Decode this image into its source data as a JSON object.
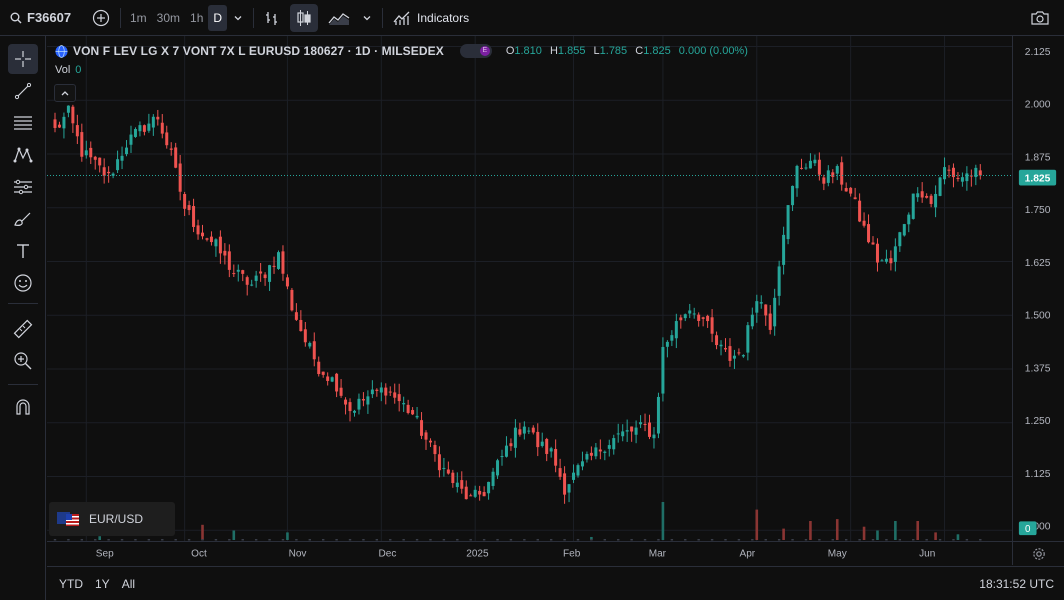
{
  "toolbar": {
    "symbol": "F36607",
    "intervals": [
      "1m",
      "30m",
      "1h",
      "D"
    ],
    "active_interval": "D",
    "indicators_label": "Indicators"
  },
  "legend": {
    "title": "VON F LEV LG X 7 VONT 7X L EURUSD 180627 · 1D · MILSEDEX",
    "badge": "E",
    "open_label": "O",
    "open": "1.810",
    "high_label": "H",
    "high": "1.855",
    "low_label": "L",
    "low": "1.785",
    "close_label": "C",
    "close": "1.825",
    "change": "0.000 (0.00%)",
    "vol_label": "Vol",
    "vol": "0"
  },
  "compare": {
    "label": "EUR/USD"
  },
  "bottom": {
    "ranges": [
      "YTD",
      "1Y",
      "All"
    ],
    "clock": "18:31:52 UTC"
  },
  "colors": {
    "up": "#26a69a",
    "down": "#ef5350",
    "background": "#0f0f0f",
    "grid": "#1c1f26",
    "last_price": "#26a69a"
  },
  "icons": {
    "left_tools": [
      "crosshair-icon",
      "trend-line-icon",
      "fib-icon",
      "pattern-icon",
      "projection-icon",
      "brush-icon",
      "text-icon",
      "emoji-icon",
      "ruler-icon",
      "zoom-in-icon",
      "magnet-icon"
    ]
  },
  "chart_data": {
    "type": "candlestick",
    "price_ticks": [
      "2.125",
      "2.000",
      "1.875",
      "1.750",
      "1.625",
      "1.500",
      "1.375",
      "1.250",
      "1.125",
      "1.000"
    ],
    "ylim": [
      0.975,
      2.14
    ],
    "last_price": "1.825",
    "volume_last": "0",
    "time_ticks": [
      {
        "label": "Sep",
        "i": 7
      },
      {
        "label": "Oct",
        "i": 29
      },
      {
        "label": "Nov",
        "i": 52
      },
      {
        "label": "Dec",
        "i": 73
      },
      {
        "label": "2025",
        "i": 94
      },
      {
        "label": "Feb",
        "i": 116
      },
      {
        "label": "Mar",
        "i": 136
      },
      {
        "label": "Apr",
        "i": 157
      },
      {
        "label": "May",
        "i": 178
      },
      {
        "label": "Jun",
        "i": 199
      }
    ],
    "anchors": [
      [
        0,
        1.93
      ],
      [
        3,
        1.97
      ],
      [
        6,
        1.88
      ],
      [
        9,
        1.85
      ],
      [
        12,
        1.82
      ],
      [
        16,
        1.9
      ],
      [
        20,
        1.94
      ],
      [
        23,
        1.96
      ],
      [
        26,
        1.87
      ],
      [
        29,
        1.75
      ],
      [
        32,
        1.7
      ],
      [
        36,
        1.66
      ],
      [
        40,
        1.6
      ],
      [
        44,
        1.57
      ],
      [
        47,
        1.6
      ],
      [
        50,
        1.64
      ],
      [
        53,
        1.52
      ],
      [
        56,
        1.44
      ],
      [
        59,
        1.38
      ],
      [
        63,
        1.34
      ],
      [
        66,
        1.28
      ],
      [
        70,
        1.31
      ],
      [
        74,
        1.33
      ],
      [
        77,
        1.3
      ],
      [
        80,
        1.27
      ],
      [
        84,
        1.19
      ],
      [
        87,
        1.14
      ],
      [
        90,
        1.1
      ],
      [
        93,
        1.07
      ],
      [
        96,
        1.09
      ],
      [
        99,
        1.15
      ],
      [
        102,
        1.21
      ],
      [
        105,
        1.25
      ],
      [
        108,
        1.2
      ],
      [
        111,
        1.18
      ],
      [
        114,
        1.1
      ],
      [
        117,
        1.14
      ],
      [
        120,
        1.17
      ],
      [
        123,
        1.2
      ],
      [
        126,
        1.22
      ],
      [
        129,
        1.23
      ],
      [
        132,
        1.24
      ],
      [
        134,
        1.22
      ],
      [
        136,
        1.42
      ],
      [
        139,
        1.48
      ],
      [
        142,
        1.52
      ],
      [
        145,
        1.49
      ],
      [
        148,
        1.43
      ],
      [
        151,
        1.4
      ],
      [
        154,
        1.42
      ],
      [
        157,
        1.55
      ],
      [
        160,
        1.48
      ],
      [
        163,
        1.7
      ],
      [
        166,
        1.84
      ],
      [
        169,
        1.86
      ],
      [
        172,
        1.82
      ],
      [
        175,
        1.83
      ],
      [
        178,
        1.78
      ],
      [
        181,
        1.7
      ],
      [
        184,
        1.63
      ],
      [
        187,
        1.62
      ],
      [
        190,
        1.72
      ],
      [
        193,
        1.8
      ],
      [
        196,
        1.76
      ],
      [
        199,
        1.84
      ],
      [
        202,
        1.82
      ],
      [
        205,
        1.83
      ],
      [
        207,
        1.825
      ]
    ],
    "volume_spikes": [
      [
        33,
        0.4
      ],
      [
        40,
        0.25
      ],
      [
        52,
        0.2
      ],
      [
        136,
        1.0
      ],
      [
        157,
        0.8
      ],
      [
        163,
        0.3
      ],
      [
        169,
        0.5
      ],
      [
        175,
        0.55
      ],
      [
        181,
        0.35
      ],
      [
        184,
        0.25
      ],
      [
        188,
        0.5
      ],
      [
        193,
        0.5
      ],
      [
        197,
        0.2
      ],
      [
        202,
        0.15
      ],
      [
        10,
        0.1
      ],
      [
        120,
        0.08
      ]
    ]
  }
}
